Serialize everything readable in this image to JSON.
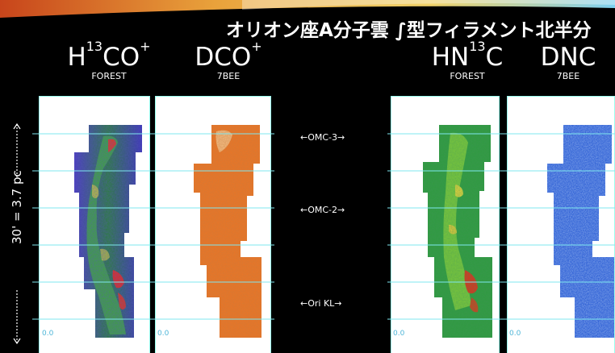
{
  "slide": {
    "title": "オリオン座A分子雲 ∫型フィラメント北半分",
    "panels": [
      {
        "molecule_base": "H",
        "molecule_sup1": "13",
        "molecule_mid": "CO",
        "molecule_sup2": "+",
        "instrument": "FOREST"
      },
      {
        "molecule_base": "DCO",
        "molecule_sup2": "+",
        "instrument": "7BEE"
      },
      {
        "molecule_base": "HN",
        "molecule_sup1": "13",
        "molecule_mid": "C",
        "instrument": "FOREST"
      },
      {
        "molecule_base": "DNC",
        "instrument": "7BEE"
      }
    ],
    "regions": [
      "←OMC-3→",
      "←OMC-2→",
      "←Ori KL→"
    ],
    "scale_label": "30' = 3.7 pc",
    "coord_label": "0.0"
  },
  "colors": {
    "background": "#000000",
    "grid_lines": "#7fe7ef",
    "h13co_map": "#2a7d3a",
    "dco_map": "#f07a28",
    "hn13c_map": "#2f8f3f",
    "dnc_map": "#1a4fd0"
  }
}
